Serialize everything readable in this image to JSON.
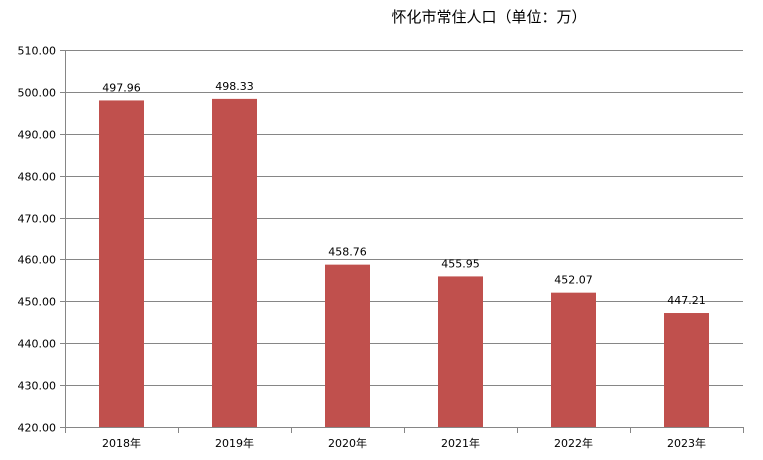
{
  "title": "怀化市常住人口（单位：万）",
  "colors": {
    "bar": "#C0504D",
    "grid": "#868686",
    "axis": "#868686"
  },
  "chart_data": {
    "type": "bar",
    "title": "怀化市常住人口（单位：万）",
    "xlabel": "",
    "ylabel": "",
    "categories": [
      "2018年",
      "2019年",
      "2020年",
      "2021年",
      "2022年",
      "2023年"
    ],
    "values": [
      497.96,
      498.33,
      458.76,
      455.95,
      452.07,
      447.21
    ],
    "data_labels": [
      "497.96",
      "498.33",
      "458.76",
      "455.95",
      "452.07",
      "447.21"
    ],
    "ylim": [
      420,
      510
    ],
    "yticks": [
      "420.00",
      "430.00",
      "440.00",
      "450.00",
      "460.00",
      "470.00",
      "480.00",
      "490.00",
      "500.00",
      "510.00"
    ],
    "grid": true,
    "legend": "none"
  }
}
